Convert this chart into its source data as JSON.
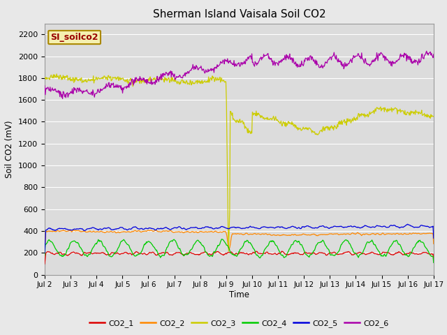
{
  "title": "Sherman Island Vaisala Soil CO2",
  "ylabel": "Soil CO2 (mV)",
  "xlabel": "Time",
  "annotation": "SI_soilco2",
  "ylim": [
    0,
    2300
  ],
  "yticks": [
    0,
    200,
    400,
    600,
    800,
    1000,
    1200,
    1400,
    1600,
    1800,
    2000,
    2200
  ],
  "xtick_labels": [
    "Jul 2",
    "Jul 3",
    "Jul 4",
    "Jul 5",
    "Jul 6",
    "Jul 7",
    "Jul 8",
    "Jul 9",
    "Jul 10",
    "Jul 11",
    "Jul 12",
    "Jul 13",
    "Jul 14",
    "Jul 15",
    "Jul 16",
    "Jul 17"
  ],
  "fig_bg_color": "#e8e8e8",
  "plot_bg_color": "#dcdcdc",
  "grid_color": "#ffffff",
  "colors": {
    "CO2_1": "#dd0000",
    "CO2_2": "#ff8800",
    "CO2_3": "#cccc00",
    "CO2_4": "#00cc00",
    "CO2_5": "#0000dd",
    "CO2_6": "#aa00aa"
  },
  "legend_labels": [
    "CO2_1",
    "CO2_2",
    "CO2_3",
    "CO2_4",
    "CO2_5",
    "CO2_6"
  ]
}
